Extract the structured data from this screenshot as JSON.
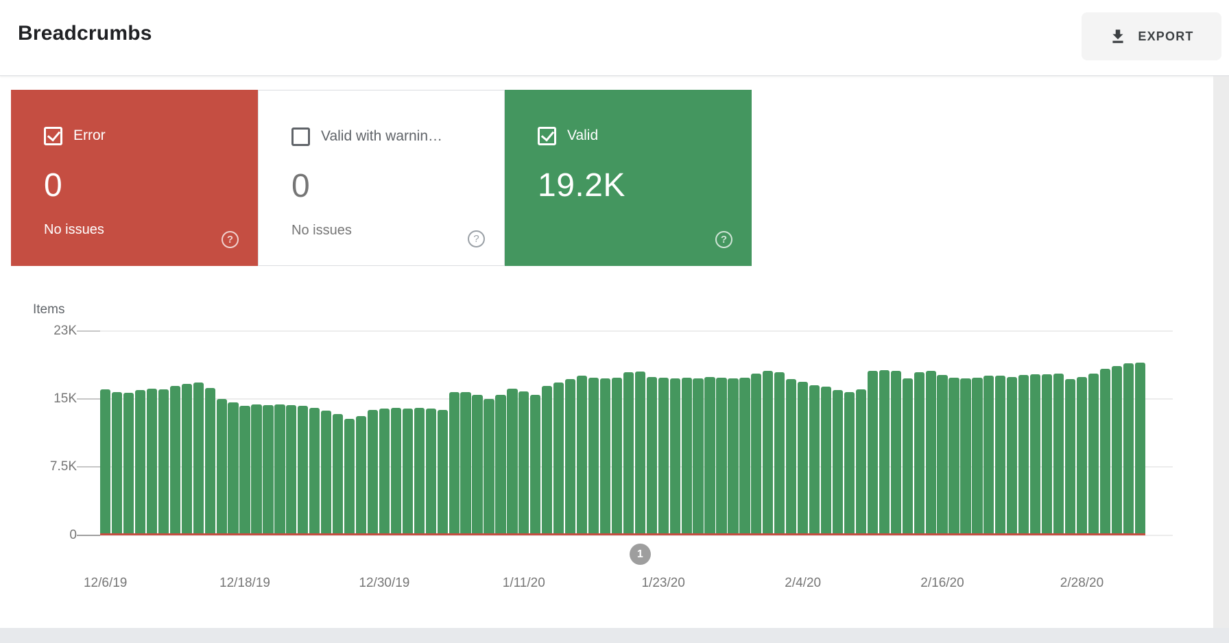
{
  "header": {
    "title": "Breadcrumbs",
    "export_label": "EXPORT"
  },
  "ui": {
    "help_glyph": "?"
  },
  "cards": [
    {
      "id": "error",
      "label": "Error",
      "value": "0",
      "sub": "No issues",
      "checked": true,
      "style": "filled",
      "bg": "#c54e42"
    },
    {
      "id": "valid-with-warnings",
      "label": "Valid with warnin…",
      "value": "0",
      "sub": "No issues",
      "checked": false,
      "style": "outline",
      "bg": "#ffffff"
    },
    {
      "id": "valid",
      "label": "Valid",
      "value": "19.2K",
      "sub": "",
      "checked": true,
      "style": "filled",
      "bg": "#44965f"
    }
  ],
  "chart_data": {
    "type": "bar",
    "ylabel": "Items",
    "y_ticks": [
      "0",
      "7.5K",
      "15K",
      "23K"
    ],
    "y_tick_values": [
      0,
      7500,
      15000,
      23000
    ],
    "ylim": [
      0,
      23000
    ],
    "grid": true,
    "x_ticks": [
      {
        "label": "12/6/19",
        "index": 0
      },
      {
        "label": "12/18/19",
        "index": 12
      },
      {
        "label": "12/30/19",
        "index": 24
      },
      {
        "label": "1/11/20",
        "index": 36
      },
      {
        "label": "1/23/20",
        "index": 48
      },
      {
        "label": "2/4/20",
        "index": 60
      },
      {
        "label": "2/16/20",
        "index": 72
      },
      {
        "label": "2/28/20",
        "index": 84
      }
    ],
    "series": [
      {
        "name": "Valid",
        "color": "#45975e",
        "type": "bar"
      },
      {
        "name": "Error",
        "color": "#c54e42",
        "type": "line",
        "constant_value": 0
      }
    ],
    "values_thousands": [
      16.2,
      15.9,
      15.8,
      16.1,
      16.3,
      16.2,
      16.6,
      16.9,
      17.0,
      16.4,
      15.1,
      14.7,
      14.3,
      14.5,
      14.4,
      14.5,
      14.4,
      14.3,
      14.1,
      13.8,
      13.4,
      12.9,
      13.2,
      13.9,
      14.0,
      14.1,
      14.0,
      14.1,
      14.0,
      13.9,
      15.9,
      15.9,
      15.6,
      15.1,
      15.6,
      16.3,
      16.0,
      15.6,
      16.6,
      17.0,
      17.4,
      17.8,
      17.6,
      17.5,
      17.6,
      18.2,
      18.3,
      17.7,
      17.6,
      17.5,
      17.6,
      17.5,
      17.7,
      17.6,
      17.5,
      17.6,
      18.1,
      18.4,
      18.2,
      17.4,
      17.1,
      16.7,
      16.5,
      16.1,
      15.9,
      16.2,
      18.4,
      18.5,
      18.4,
      17.5,
      18.2,
      18.4,
      17.9,
      17.6,
      17.5,
      17.6,
      17.8,
      17.8,
      17.7,
      17.9,
      18.0,
      18.0,
      18.1,
      17.4,
      17.7,
      18.1,
      18.6,
      19.0,
      19.3,
      19.4
    ],
    "marker": {
      "label": "1",
      "index": 46,
      "color": "#9e9e9e"
    }
  }
}
